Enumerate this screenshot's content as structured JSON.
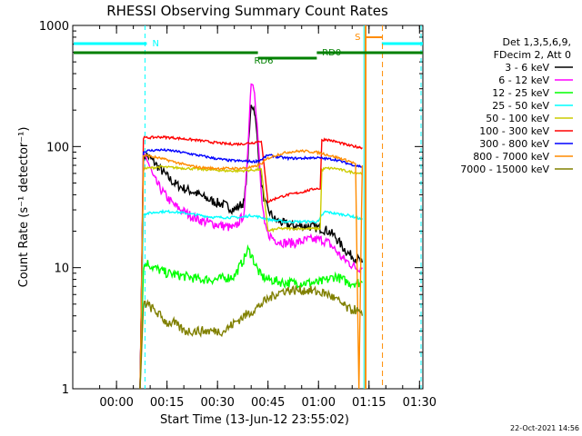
{
  "chart_data": {
    "type": "line",
    "title": "RHESSI Observing Summary Count Rates",
    "xlabel": "Start Time (13-Jun-12 23:55:02)",
    "ylabel": "Count Rate (s⁻¹ detector⁻¹)",
    "x_unit": "minutes from start",
    "xlim": [
      -8,
      96
    ],
    "ylim": [
      1,
      1000
    ],
    "yscale": "log",
    "grid": false,
    "x_ticks": [
      {
        "value": 5,
        "label": "00:00"
      },
      {
        "value": 20,
        "label": "00:15"
      },
      {
        "value": 35,
        "label": "00:30"
      },
      {
        "value": 50,
        "label": "00:45"
      },
      {
        "value": 65,
        "label": "01:00"
      },
      {
        "value": 80,
        "label": "01:15"
      },
      {
        "value": 95,
        "label": "01:30"
      }
    ],
    "y_ticks": [
      {
        "value": 1,
        "label": "1"
      },
      {
        "value": 10,
        "label": "10"
      },
      {
        "value": 100,
        "label": "100"
      },
      {
        "value": 1000,
        "label": "1000"
      }
    ],
    "legend_header": [
      "Det 1,3,5,6,9,",
      "FDecim 2, Att 0"
    ],
    "legend_position": "right",
    "series": [
      {
        "name": "3 - 6 keV",
        "color": "#000000",
        "x": [
          12,
          13,
          14,
          16,
          18,
          20,
          22,
          25,
          28,
          31,
          34,
          37,
          40,
          43,
          44,
          45,
          46,
          47,
          48,
          49,
          50,
          52,
          55,
          58,
          62,
          66,
          68,
          70,
          72,
          74,
          76,
          78
        ],
        "y": [
          1,
          80,
          85,
          75,
          65,
          57,
          50,
          45,
          42,
          38,
          35,
          33,
          30,
          35,
          80,
          230,
          200,
          100,
          50,
          35,
          30,
          25,
          23,
          22,
          22,
          21,
          20,
          18,
          15,
          13,
          12,
          11
        ]
      },
      {
        "name": "6 - 12 keV",
        "color": "#ff00ff",
        "x": [
          12,
          13,
          14,
          16,
          18,
          20,
          22,
          25,
          28,
          31,
          34,
          37,
          40,
          43,
          44,
          45,
          46,
          47,
          48,
          49,
          50,
          52,
          55,
          58,
          62,
          66,
          68,
          70,
          72,
          74,
          76,
          78
        ],
        "y": [
          1,
          82,
          80,
          55,
          45,
          38,
          33,
          29,
          26,
          24,
          23,
          22,
          21,
          28,
          100,
          350,
          300,
          120,
          40,
          22,
          19,
          17,
          16,
          16,
          17,
          17,
          16,
          14,
          12,
          11,
          10,
          10
        ]
      },
      {
        "name": "12 - 25 keV",
        "color": "#00ff00",
        "x": [
          12,
          13,
          14,
          16,
          20,
          25,
          30,
          35,
          40,
          43,
          44,
          45,
          46,
          47,
          48,
          50,
          55,
          60,
          65,
          68,
          70,
          72,
          74,
          76,
          78
        ],
        "y": [
          1,
          10,
          11,
          10,
          9,
          8.5,
          8,
          8,
          8.5,
          12,
          14,
          13,
          11,
          9.5,
          8.5,
          8,
          7.5,
          7.5,
          7.5,
          8,
          8.5,
          8,
          7.5,
          7.5,
          7.5
        ]
      },
      {
        "name": "25 - 50 keV",
        "color": "#00ffff",
        "x": [
          12,
          13,
          14,
          18,
          22,
          26,
          30,
          34,
          38,
          42,
          45,
          48,
          50,
          55,
          60,
          65,
          66,
          67,
          70,
          74,
          78
        ],
        "y": [
          1,
          28,
          28,
          29,
          29,
          28,
          27,
          26,
          26,
          26,
          27,
          26,
          25,
          24,
          24,
          24,
          27,
          29,
          28,
          27,
          25
        ]
      },
      {
        "name": "50 - 100 keV",
        "color": "#cccc00",
        "x": [
          12,
          13,
          14,
          18,
          22,
          26,
          30,
          34,
          38,
          42,
          46,
          48,
          50,
          53,
          56,
          60,
          64,
          65.5,
          66,
          67,
          70,
          74,
          78
        ],
        "y": [
          1,
          66,
          66,
          68,
          67,
          66,
          65,
          64,
          63,
          63,
          64,
          65,
          20,
          21,
          21,
          21,
          21,
          21,
          64,
          66,
          66,
          62,
          60
        ]
      },
      {
        "name": "100 - 300 keV",
        "color": "#ff0000",
        "x": [
          12,
          13,
          14,
          18,
          22,
          26,
          30,
          34,
          38,
          42,
          46,
          48,
          50,
          53,
          56,
          60,
          64,
          65.5,
          66,
          67,
          70,
          74,
          78
        ],
        "y": [
          1,
          118,
          118,
          120,
          118,
          115,
          112,
          108,
          105,
          105,
          108,
          112,
          35,
          38,
          40,
          42,
          45,
          45,
          112,
          115,
          110,
          102,
          98
        ]
      },
      {
        "name": "300 - 800 keV",
        "color": "#0000ff",
        "x": [
          12,
          13,
          14,
          18,
          22,
          26,
          30,
          34,
          38,
          42,
          46,
          48,
          50,
          53,
          56,
          60,
          64,
          66,
          70,
          74,
          78
        ],
        "y": [
          1,
          90,
          92,
          94,
          92,
          88,
          84,
          80,
          77,
          76,
          75,
          78,
          85,
          82,
          80,
          80,
          81,
          80,
          78,
          72,
          68
        ]
      },
      {
        "name": "800 - 7000 keV",
        "color": "#ff8c00",
        "x": [
          12,
          13,
          14,
          18,
          22,
          26,
          30,
          34,
          38,
          42,
          46,
          48,
          50,
          53,
          56,
          60,
          64,
          66,
          70,
          74,
          76,
          77,
          78
        ],
        "y": [
          1,
          84,
          84,
          80,
          75,
          70,
          67,
          66,
          66,
          66,
          68,
          72,
          80,
          86,
          90,
          92,
          90,
          88,
          82,
          76,
          72,
          1,
          70
        ]
      },
      {
        "name": "7000 - 15000 keV",
        "color": "#808000",
        "x": [
          12,
          13,
          14,
          16,
          18,
          20,
          22,
          25,
          28,
          31,
          34,
          37,
          40,
          43,
          46,
          48,
          50,
          52,
          55,
          58,
          62,
          66,
          68,
          70,
          72,
          74,
          76,
          78
        ],
        "y": [
          1,
          5,
          5,
          4.5,
          4,
          3.5,
          3.5,
          3,
          3,
          3,
          3,
          3,
          3.5,
          4,
          4.5,
          5,
          5.5,
          6,
          6.5,
          6.5,
          6.5,
          6.2,
          6,
          5.5,
          5,
          4.5,
          4.5,
          4
        ]
      }
    ],
    "annotations": [
      {
        "label": "N",
        "type": "night",
        "x_start": -8,
        "x_end": 14,
        "color": "#00ffff"
      },
      {
        "label": "S",
        "type": "saa",
        "x_start": 79,
        "x_end": 84,
        "color": "#ff8c00"
      },
      {
        "label": "RD6",
        "type": "rd",
        "x_start": 47,
        "x_end": 64.5,
        "color": "#008000"
      },
      {
        "label": "RD0",
        "type": "rd",
        "x_start": 64.5,
        "x_end": 96,
        "color": "#008000"
      }
    ],
    "timestamp": "22-Oct-2021 14:56"
  }
}
